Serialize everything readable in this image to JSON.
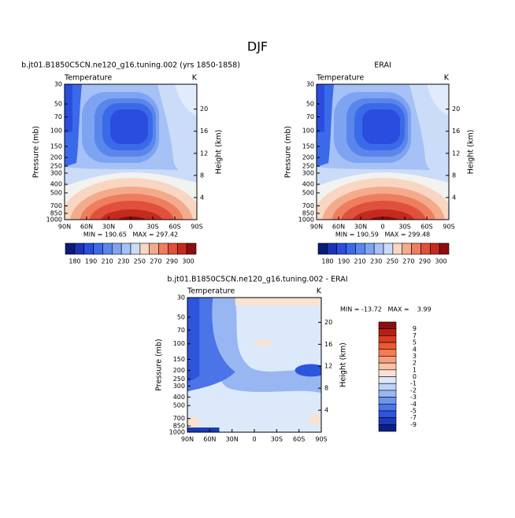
{
  "title": "DJF",
  "panels": [
    {
      "title": "b.jt01.B1850C5CN.ne120_g16.tuning.002 (yrs 1850-1858)",
      "left_string": "Temperature",
      "right_string": "K",
      "y_label": "Pressure (mb)",
      "y2_label": "Height (km)",
      "x": [
        "90N",
        "60N",
        "30N",
        "0",
        "30S",
        "60S",
        "90S"
      ],
      "ylim": [
        1000,
        30
      ],
      "yticks": [
        30,
        50,
        70,
        100,
        150,
        200,
        250,
        300,
        400,
        500,
        700,
        850,
        1000
      ],
      "log_y": true,
      "y2lim": [
        0,
        24.5
      ],
      "y2ticks": [
        4,
        8,
        12,
        16,
        20
      ],
      "stats": "MIN = 190.65   MAX = 297.42",
      "colorbar": {
        "labels": [
          180,
          190,
          210,
          230,
          250,
          270,
          290,
          300
        ],
        "colors": [
          "#0a1a78",
          "#1c33b5",
          "#2a4de0",
          "#3b6ae8",
          "#5a86ec",
          "#7ea3f1",
          "#a5c1f5",
          "#cbdcf8",
          "#f8d6c2",
          "#f4ab8c",
          "#ee7e5e",
          "#e0503a",
          "#c42a1e",
          "#8c0e0e"
        ]
      }
    },
    {
      "title": "ERAI",
      "left_string": "Temperature",
      "right_string": "K",
      "y_label": "Pressure (mb)",
      "y2_label": "Height (km)",
      "x": [
        "90N",
        "60N",
        "30N",
        "0",
        "30S",
        "60S",
        "90S"
      ],
      "ylim": [
        1000,
        30
      ],
      "yticks": [
        30,
        50,
        70,
        100,
        150,
        200,
        250,
        300,
        400,
        500,
        700,
        850,
        1000
      ],
      "log_y": true,
      "y2lim": [
        0,
        24.5
      ],
      "y2ticks": [
        4,
        8,
        12,
        16,
        20
      ],
      "stats": "MIN = 190.59   MAX = 299.48",
      "colorbar": {
        "labels": [
          180,
          190,
          210,
          230,
          250,
          270,
          290,
          300
        ],
        "colors": [
          "#0a1a78",
          "#1c33b5",
          "#2a4de0",
          "#3b6ae8",
          "#5a86ec",
          "#7ea3f1",
          "#a5c1f5",
          "#cbdcf8",
          "#f8d6c2",
          "#f4ab8c",
          "#ee7e5e",
          "#e0503a",
          "#c42a1e",
          "#8c0e0e"
        ]
      }
    },
    {
      "title": "b.jt01.B1850C5CN.ne120_g16.tuning.002 - ERAI",
      "left_string": "Temperature",
      "right_string": "K",
      "y_label": "Pressure (mb)",
      "y2_label": "Height (km)",
      "x": [
        "90N",
        "60N",
        "30N",
        "0",
        "30S",
        "60S",
        "90S"
      ],
      "ylim": [
        1000,
        30
      ],
      "yticks": [
        30,
        50,
        70,
        100,
        150,
        200,
        250,
        300,
        400,
        500,
        700,
        850,
        1000
      ],
      "log_y": true,
      "y2lim": [
        0,
        24.5
      ],
      "y2ticks": [
        4,
        8,
        12,
        16,
        20
      ],
      "stats": "MIN = -13.72   MAX =    3.99",
      "colorbar": {
        "labels": [
          9,
          7,
          5,
          4,
          3,
          2,
          1,
          0,
          -1,
          -2,
          -3,
          -4,
          -5,
          -7,
          -9
        ],
        "colors": [
          "#8c0e0e",
          "#b81e14",
          "#d83a22",
          "#ec5a32",
          "#f47c52",
          "#f6a07e",
          "#f8c3a8",
          "#fae2d2",
          "#dce9fa",
          "#bcd2f6",
          "#98b6f2",
          "#6e94ee",
          "#4a74e8",
          "#2c55dc",
          "#1a3ab8",
          "#0c1f86"
        ]
      }
    }
  ]
}
